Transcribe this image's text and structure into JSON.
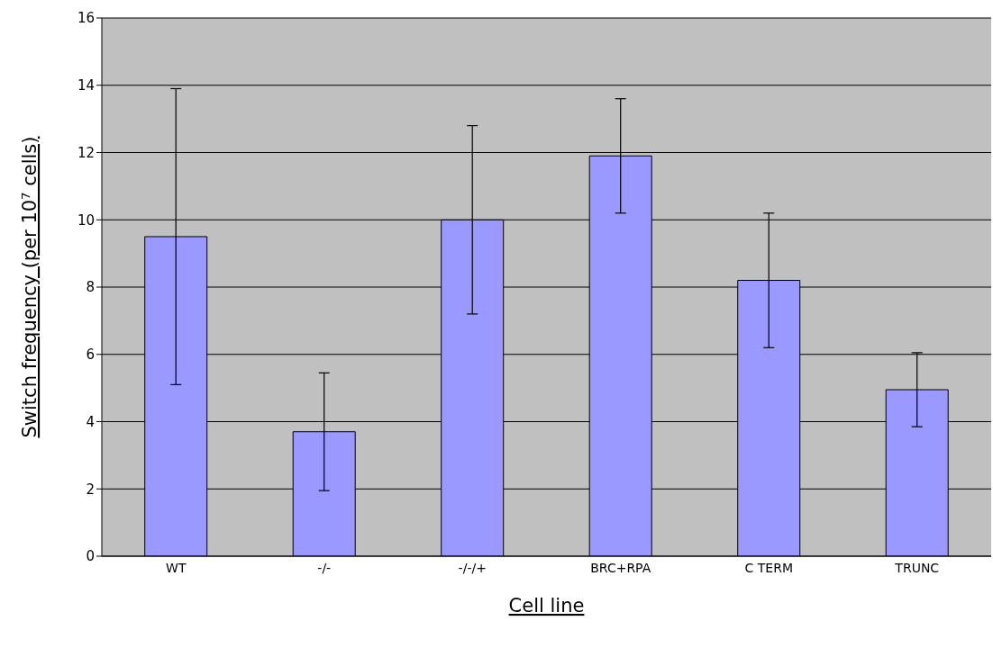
{
  "chart_data": {
    "type": "bar",
    "xlabel": "Cell line",
    "ylabel": "Switch frequency (per 10⁷ cells)",
    "categories": [
      "WT",
      "-/-",
      "-/-/+",
      "BRC+RPA",
      "C TERM",
      "TRUNC"
    ],
    "values": [
      9.5,
      3.7,
      10.0,
      11.9,
      8.2,
      4.95
    ],
    "errors": [
      4.4,
      1.75,
      2.8,
      1.7,
      2.0,
      1.1
    ],
    "color": "#9999ff",
    "ylim": [
      0,
      16
    ],
    "yticks": [
      0,
      2,
      4,
      6,
      8,
      10,
      12,
      14,
      16
    ],
    "grid": "y",
    "legend": false
  }
}
